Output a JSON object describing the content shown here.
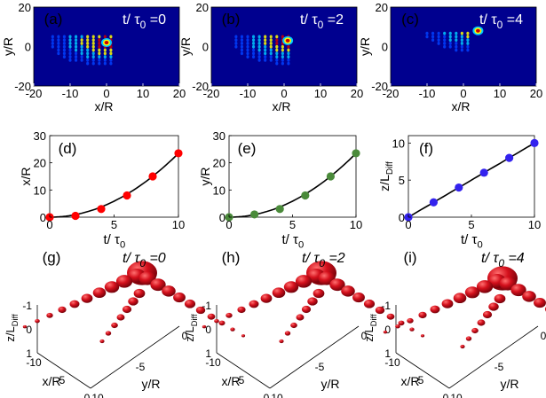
{
  "colors": {
    "map_bg": "#00008f",
    "map_cool": "#0040ff",
    "map_cyan": "#00c8ff",
    "map_yellow": "#ffff00",
    "map_red": "#cc0000",
    "marker_d": "#ff0000",
    "marker_e": "#4a8a3a",
    "marker_f": "#3322ee",
    "sphere": "#cc1020"
  },
  "chart_data": [
    {
      "id": "a",
      "type": "heatmap",
      "panel_label": "(a)",
      "time_label": "t/ τ0 =0",
      "xlabel": "x/R",
      "ylabel": "y/R",
      "xlim": [
        -20,
        20
      ],
      "ylim": [
        -20,
        20
      ],
      "xticks": [
        "-20",
        "-10",
        "0",
        "10",
        "20"
      ],
      "yticks": [
        "20",
        "0",
        "-20"
      ],
      "peak": [
        0,
        2
      ]
    },
    {
      "id": "b",
      "type": "heatmap",
      "panel_label": "(b)",
      "time_label": "t/ τ0 =2",
      "xlabel": "x/R",
      "ylabel": "y/R",
      "xlim": [
        -20,
        20
      ],
      "ylim": [
        -20,
        20
      ],
      "xticks": [
        "-20",
        "-10",
        "0",
        "10",
        "20"
      ],
      "yticks": [
        "20",
        "0",
        "-20"
      ],
      "peak": [
        1,
        3
      ]
    },
    {
      "id": "c",
      "type": "heatmap",
      "panel_label": "(c)",
      "time_label": "t/ τ0 =4",
      "xlabel": "x/R",
      "ylabel": "y/R",
      "xlim": [
        -20,
        20
      ],
      "ylim": [
        -20,
        20
      ],
      "xticks": [
        "-20",
        "-10",
        "0",
        "10",
        "20"
      ],
      "yticks": [
        "20",
        "0",
        "-20"
      ],
      "peak": [
        4,
        8
      ]
    },
    {
      "id": "d",
      "type": "scatter",
      "panel_label": "(d)",
      "xlabel": "t/ τ0",
      "ylabel": "x/R",
      "xlim": [
        0,
        10
      ],
      "ylim": [
        0,
        30
      ],
      "xticks": [
        "0",
        "5",
        "10"
      ],
      "yticks": [
        "0",
        "10",
        "20",
        "30"
      ],
      "points": [
        [
          0,
          0
        ],
        [
          2,
          0.5
        ],
        [
          4,
          3
        ],
        [
          6,
          8
        ],
        [
          8,
          15
        ],
        [
          10,
          23.5
        ]
      ],
      "curve_coeff": 0.235
    },
    {
      "id": "e",
      "type": "scatter",
      "panel_label": "(e)",
      "xlabel": "t/ τ0",
      "ylabel": "y/R",
      "xlim": [
        0,
        10
      ],
      "ylim": [
        0,
        30
      ],
      "xticks": [
        "0",
        "5",
        "10"
      ],
      "yticks": [
        "0",
        "10",
        "20",
        "30"
      ],
      "points": [
        [
          0,
          0
        ],
        [
          2,
          1
        ],
        [
          4,
          3
        ],
        [
          6,
          8
        ],
        [
          8,
          15
        ],
        [
          10,
          23.5
        ]
      ],
      "curve_coeff": 0.235
    },
    {
      "id": "f",
      "type": "scatter",
      "panel_label": "(f)",
      "xlabel": "t/ τ0",
      "ylabel": "z/LDiff",
      "xlim": [
        0,
        10
      ],
      "ylim": [
        0,
        11
      ],
      "xticks": [
        "0",
        "5",
        "10"
      ],
      "yticks": [
        "0",
        "5",
        "10"
      ],
      "points": [
        [
          0,
          0
        ],
        [
          2,
          2
        ],
        [
          4,
          4
        ],
        [
          6,
          6
        ],
        [
          8,
          8
        ],
        [
          10,
          10
        ]
      ],
      "curve_coeff": 1
    },
    {
      "id": "g",
      "type": "scatter3d",
      "panel_label": "(g)",
      "time_label": "t/ τ0 =0",
      "xlabel": "x/R",
      "ylabel": "y/R",
      "zlabel": "z/LDiff",
      "xticks": [
        "-10",
        "-5",
        "0"
      ],
      "yticks": [
        "-10",
        "-5",
        "0"
      ],
      "zticks": [
        "-1",
        "0",
        "1"
      ]
    },
    {
      "id": "h",
      "type": "scatter3d",
      "panel_label": "(h)",
      "time_label": "t/ τ0 =2",
      "xlabel": "x/R",
      "ylabel": "y/R",
      "zlabel": "z/LDiff",
      "xticks": [
        "-10",
        "-5",
        "0"
      ],
      "yticks": [
        "-10",
        "-5",
        "0"
      ],
      "zticks": [
        "-1",
        "0",
        "1"
      ]
    },
    {
      "id": "i",
      "type": "scatter3d",
      "panel_label": "(i)",
      "time_label": "t/ τ0 =4",
      "xlabel": "x/R",
      "ylabel": "y/R",
      "zlabel": "z/LDiff",
      "xticks": [
        "-10",
        "-5",
        "0"
      ],
      "yticks": [
        "-10",
        "-5",
        "0"
      ],
      "zticks": [
        "-1",
        "0",
        "1"
      ]
    }
  ]
}
